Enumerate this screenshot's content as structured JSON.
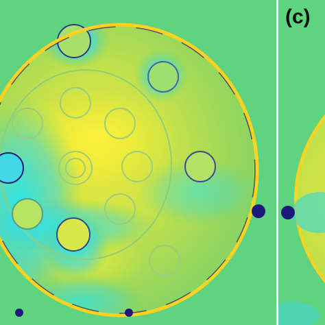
{
  "figure": {
    "panel_label": "(c)",
    "colors": {
      "background": "#5fd37e",
      "high": "#f4ef2e",
      "low": "#20e4f0",
      "edge_dark": "#1a1a7a",
      "edge_bright": "#ffd21f"
    }
  }
}
